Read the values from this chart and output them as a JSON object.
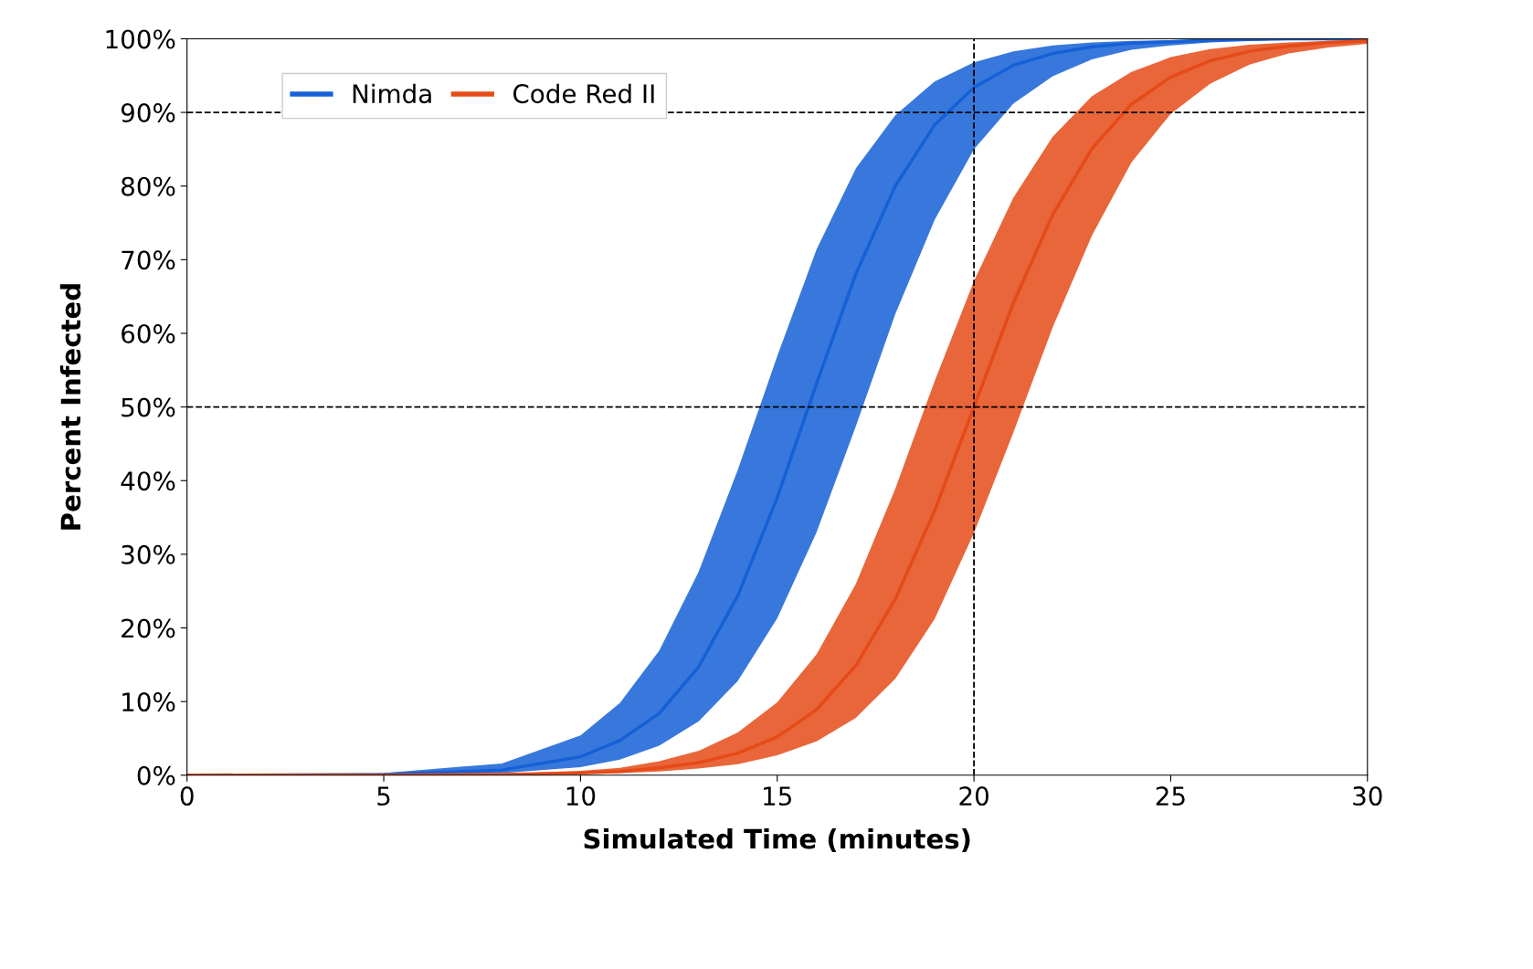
{
  "chart_data": {
    "type": "line",
    "xlabel": "Simulated Time (minutes)",
    "ylabel": "Percent Infected",
    "x": [
      0,
      5,
      8,
      10,
      11,
      12,
      13,
      14,
      15,
      16,
      17,
      18,
      19,
      20,
      21,
      22,
      23,
      24,
      25,
      26,
      27,
      28,
      29,
      30
    ],
    "series": [
      {
        "name": "Nimda",
        "color": "#1560d6",
        "values": [
          0.0,
          0.1,
          0.7,
          2.5,
          4.7,
          8.4,
          14.7,
          24.4,
          37.7,
          53.2,
          68.1,
          80.0,
          88.3,
          93.4,
          96.4,
          98.0,
          98.9,
          99.4,
          99.6,
          99.8,
          99.9,
          100,
          100,
          100
        ],
        "upper": [
          0.0,
          0.3,
          1.6,
          5.4,
          9.8,
          16.9,
          27.6,
          41.5,
          56.9,
          71.4,
          82.4,
          89.6,
          94.2,
          96.8,
          98.3,
          99.1,
          99.5,
          99.7,
          99.8,
          99.9,
          100,
          100,
          100,
          100
        ],
        "lower": [
          0.0,
          0.1,
          0.3,
          1.1,
          2.1,
          4.0,
          7.3,
          12.8,
          21.3,
          33.0,
          47.4,
          62.6,
          75.4,
          85.0,
          91.2,
          94.9,
          97.2,
          98.5,
          99.1,
          99.5,
          99.7,
          99.9,
          100,
          100
        ]
      },
      {
        "name": "Code Red II",
        "color": "#e54a17",
        "values": [
          0.0,
          0.0,
          0.1,
          0.3,
          0.5,
          1.0,
          1.7,
          3.0,
          5.2,
          8.9,
          14.9,
          23.9,
          35.9,
          50,
          64.1,
          76.1,
          85.1,
          91.1,
          94.8,
          97.0,
          98.3,
          99.0,
          99.5,
          99.7
        ],
        "upper": [
          0.0,
          0.0,
          0.2,
          0.6,
          1.0,
          1.9,
          3.3,
          5.8,
          9.9,
          16.4,
          26.0,
          38.9,
          53.5,
          67.1,
          78.4,
          86.7,
          92.2,
          95.5,
          97.5,
          98.6,
          99.2,
          99.5,
          99.7,
          99.8
        ],
        "lower": [
          0.0,
          0.0,
          0.1,
          0.2,
          0.3,
          0.5,
          0.9,
          1.5,
          2.7,
          4.6,
          7.8,
          13.1,
          21.2,
          32.9,
          46.5,
          60.8,
          73.3,
          83.2,
          89.8,
          93.9,
          96.5,
          98.0,
          98.8,
          99.3
        ]
      }
    ],
    "xlim": [
      0,
      30
    ],
    "xticks": [
      0,
      5,
      10,
      15,
      20,
      25,
      30
    ],
    "ylim": [
      0,
      100
    ],
    "yticks": [
      {
        "value": 0,
        "label": "0%"
      },
      {
        "value": 10,
        "label": "10%"
      },
      {
        "value": 20,
        "label": "20%"
      },
      {
        "value": 30,
        "label": "30%"
      },
      {
        "value": 40,
        "label": "40%"
      },
      {
        "value": 50,
        "label": "50%"
      },
      {
        "value": 60,
        "label": "60%"
      },
      {
        "value": 70,
        "label": "70%"
      },
      {
        "value": 80,
        "label": "80%"
      },
      {
        "value": 90,
        "label": "90%"
      },
      {
        "value": 100,
        "label": "100%"
      }
    ],
    "ref_lines": [
      {
        "axis": "y",
        "value": 90,
        "color": "#000000",
        "line_style": "dashed"
      },
      {
        "axis": "y",
        "value": 50,
        "color": "#000000",
        "line_style": "dashed"
      },
      {
        "axis": "x",
        "value": 20,
        "color": "#000000",
        "line_style": "dashed"
      }
    ],
    "legend": "top left",
    "grid": false,
    "marker": "none",
    "line_style": "solid"
  }
}
